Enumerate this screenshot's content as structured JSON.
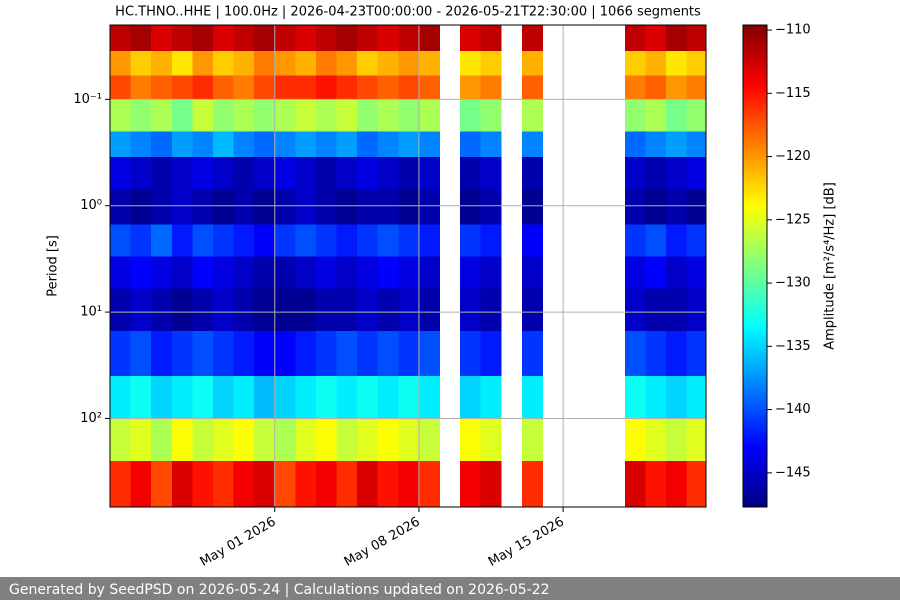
{
  "chart_data": {
    "type": "heatmap",
    "title": "HC.THNO..HHE | 100.0Hz | 2026-04-23T00:00:00 - 2026-05-21T22:30:00 | 1066 segments",
    "y_label": "Period [s]",
    "colorbar_label": "Amplitude [m²/s⁴/Hz] [dB]",
    "footer": "Generated by SeedPSD on 2026-05-24 | Calculations updated on 2026-05-22",
    "x": [
      "2026-04-23",
      "2026-04-24",
      "2026-04-25",
      "2026-04-26",
      "2026-04-27",
      "2026-04-28",
      "2026-04-29",
      "2026-04-30",
      "2026-05-01",
      "2026-05-02",
      "2026-05-03",
      "2026-05-04",
      "2026-05-05",
      "2026-05-06",
      "2026-05-07",
      "2026-05-08",
      "2026-05-09",
      "2026-05-10",
      "2026-05-11",
      "2026-05-12",
      "2026-05-13",
      "2026-05-14",
      "2026-05-15",
      "2026-05-16",
      "2026-05-17",
      "2026-05-18",
      "2026-05-19",
      "2026-05-20",
      "2026-05-21"
    ],
    "xlim": [
      "2026-04-23T00:00:00",
      "2026-05-21T22:30:00"
    ],
    "xticks": [
      {
        "value": "2026-05-01",
        "label": "May 01 2026"
      },
      {
        "value": "2026-05-08",
        "label": "May 08 2026"
      },
      {
        "value": "2026-05-15",
        "label": "May 15 2026"
      }
    ],
    "y_edges": [
      0.02,
      0.035,
      0.06,
      0.1,
      0.2,
      0.35,
      0.7,
      1.5,
      3,
      6,
      15,
      40,
      100,
      250,
      680
    ],
    "ylim": [
      0.02,
      680
    ],
    "y_log": true,
    "y_inverted": true,
    "yticks": [
      {
        "value": 0.1,
        "label": "10⁻¹"
      },
      {
        "value": 1,
        "label": "10⁰"
      },
      {
        "value": 10,
        "label": "10¹"
      },
      {
        "value": 100,
        "label": "10²"
      }
    ],
    "grid": true,
    "colormap": "jet",
    "clim": [
      -147.7,
      -109.6
    ],
    "cticks": [
      {
        "value": -110,
        "label": "−110"
      },
      {
        "value": -115,
        "label": "−115"
      },
      {
        "value": -120,
        "label": "−120"
      },
      {
        "value": -125,
        "label": "−125"
      },
      {
        "value": -130,
        "label": "−130"
      },
      {
        "value": -135,
        "label": "−135"
      },
      {
        "value": -140,
        "label": "−140"
      },
      {
        "value": -145,
        "label": "−145"
      }
    ],
    "z": [
      [
        -112,
        -111,
        -113,
        -112,
        -111,
        -113,
        -112,
        -111,
        -112,
        -113,
        -112,
        -111,
        -112,
        -113,
        -112,
        -111,
        null,
        -113,
        -112,
        null,
        -112,
        null,
        null,
        null,
        null,
        -112,
        -113,
        -111,
        -112
      ],
      [
        -120,
        -122,
        -121,
        -123,
        -120,
        -122,
        -121,
        -119,
        -120,
        -121,
        -119,
        -120,
        -122,
        -121,
        -120,
        -121,
        null,
        -123,
        -122,
        null,
        -121,
        null,
        null,
        null,
        null,
        -122,
        -121,
        -123,
        -122
      ],
      [
        -117,
        -119,
        -118,
        -117,
        -116,
        -118,
        -119,
        -117,
        -116,
        -116,
        -115,
        -116,
        -117,
        -118,
        -117,
        -118,
        null,
        -120,
        -119,
        null,
        -118,
        null,
        null,
        null,
        null,
        -119,
        -118,
        -120,
        -119
      ],
      [
        -127,
        -128,
        -127,
        -129,
        -126,
        -128,
        -127,
        -128,
        -127,
        -126,
        -127,
        -126,
        -128,
        -127,
        -128,
        -127,
        null,
        -129,
        -128,
        null,
        -127,
        null,
        null,
        null,
        null,
        -128,
        -127,
        -129,
        -128
      ],
      [
        -137,
        -138,
        -139,
        -137,
        -138,
        -136,
        -138,
        -139,
        -138,
        -137,
        -138,
        -137,
        -139,
        -138,
        -137,
        -138,
        null,
        -139,
        -138,
        null,
        -138,
        null,
        null,
        null,
        null,
        -139,
        -138,
        -137,
        -138
      ],
      [
        -144,
        -145,
        -146,
        -145,
        -144,
        -145,
        -146,
        -145,
        -144,
        -145,
        -146,
        -145,
        -144,
        -145,
        -146,
        -145,
        null,
        -146,
        -145,
        null,
        -146,
        null,
        null,
        null,
        null,
        -145,
        -146,
        -145,
        -144
      ],
      [
        -146,
        -147,
        -146,
        -145,
        -146,
        -147,
        -146,
        -147,
        -146,
        -145,
        -146,
        -147,
        -146,
        -146,
        -147,
        -146,
        null,
        -147,
        -146,
        null,
        -147,
        null,
        null,
        null,
        null,
        -146,
        -147,
        -146,
        -147
      ],
      [
        -140,
        -141,
        -139,
        -142,
        -140,
        -141,
        -142,
        -143,
        -141,
        -140,
        -141,
        -142,
        -141,
        -140,
        -141,
        -142,
        null,
        -141,
        -142,
        null,
        -143,
        null,
        null,
        null,
        null,
        -141,
        -140,
        -142,
        -141
      ],
      [
        -144,
        -143,
        -144,
        -145,
        -143,
        -144,
        -145,
        -146,
        -146,
        -145,
        -144,
        -145,
        -144,
        -143,
        -144,
        -145,
        null,
        -144,
        -145,
        null,
        -145,
        null,
        null,
        null,
        null,
        -144,
        -143,
        -145,
        -144
      ],
      [
        -146,
        -145,
        -146,
        -147,
        -146,
        -145,
        -146,
        -147,
        -147,
        -147,
        -146,
        -146,
        -145,
        -146,
        -145,
        -146,
        null,
        -145,
        -146,
        null,
        -146,
        null,
        null,
        null,
        null,
        -145,
        -146,
        -146,
        -145
      ],
      [
        -141,
        -140,
        -142,
        -141,
        -140,
        -141,
        -142,
        -143,
        -143,
        -142,
        -141,
        -140,
        -141,
        -140,
        -141,
        -140,
        null,
        -141,
        -142,
        null,
        -141,
        null,
        null,
        null,
        null,
        -140,
        -141,
        -142,
        -141
      ],
      [
        -134,
        -133,
        -135,
        -134,
        -133,
        -135,
        -134,
        -136,
        -135,
        -134,
        -133,
        -134,
        -133,
        -134,
        -133,
        -134,
        null,
        -135,
        -134,
        null,
        -134,
        null,
        null,
        null,
        null,
        -133,
        -134,
        -135,
        -134
      ],
      [
        -126,
        -125,
        -127,
        -124,
        -126,
        -125,
        -124,
        -126,
        -127,
        -125,
        -124,
        -126,
        -125,
        -124,
        -125,
        -126,
        null,
        -124,
        -125,
        null,
        -126,
        null,
        null,
        null,
        null,
        -124,
        -125,
        -126,
        -125
      ],
      [
        -116,
        -114,
        -117,
        -113,
        -115,
        -116,
        -114,
        -113,
        -117,
        -115,
        -114,
        -116,
        -113,
        -115,
        -114,
        -116,
        null,
        -114,
        -113,
        null,
        -116,
        null,
        null,
        null,
        null,
        -113,
        -115,
        -114,
        -116
      ]
    ]
  }
}
